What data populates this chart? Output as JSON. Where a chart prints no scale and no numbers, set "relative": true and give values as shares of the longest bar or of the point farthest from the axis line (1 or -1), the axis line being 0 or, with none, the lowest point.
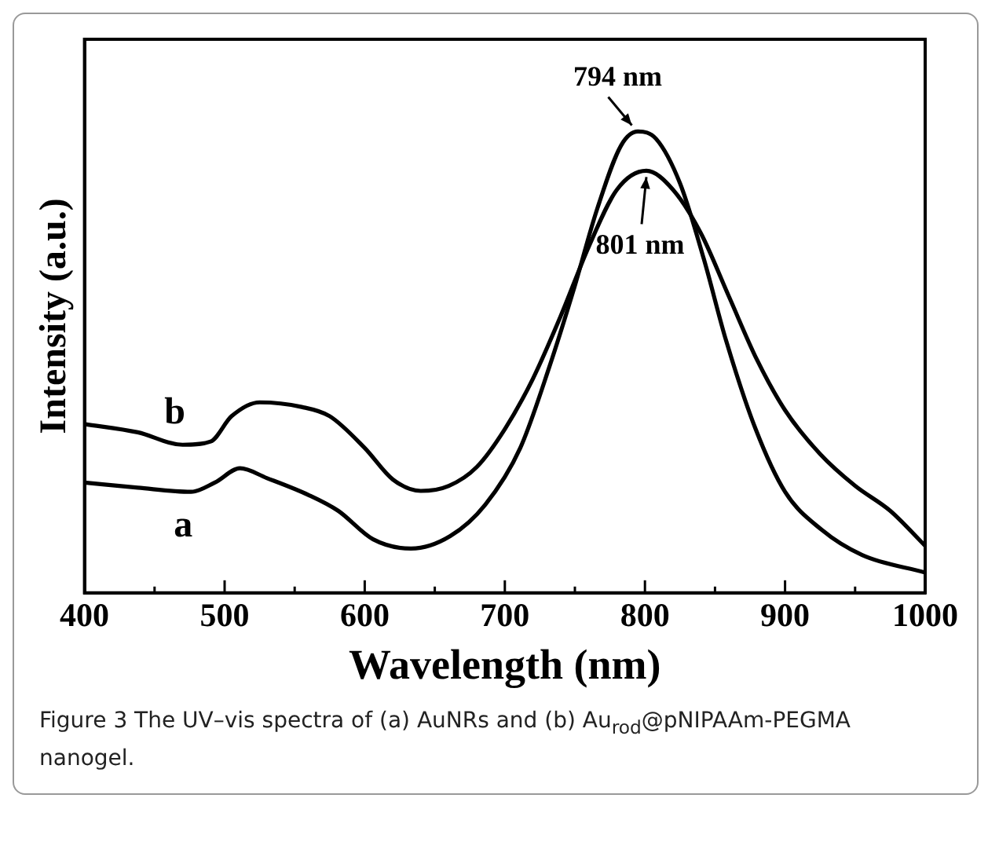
{
  "chart_data": {
    "type": "line",
    "relative": true,
    "xlabel": "Wavelength (nm)",
    "ylabel": "Intensity (a.u.)",
    "xlim": [
      400,
      1000
    ],
    "xticks": [
      400,
      {
        "value": 450,
        "label": null
      },
      500,
      {
        "value": 550,
        "label": null
      },
      600,
      {
        "value": 650,
        "label": null
      },
      700,
      {
        "value": 750,
        "label": null
      },
      800,
      {
        "value": 850,
        "label": null
      },
      900,
      {
        "value": 950,
        "label": null
      },
      1000
    ],
    "grid": false,
    "legend": false,
    "marker": "none",
    "line_style": "solid",
    "series": [
      {
        "name": "a",
        "color": "#000000",
        "x": [
          400,
          438,
          476,
          493,
          511,
          530,
          560,
          581,
          606,
          633,
          661,
          686,
          711,
          732,
          749,
          766,
          783,
          795,
          808,
          825,
          842,
          858,
          879,
          900,
          926,
          955,
          1000
        ],
        "values": [
          0.239,
          0.228,
          0.219,
          0.239,
          0.27,
          0.249,
          0.212,
          0.178,
          0.116,
          0.096,
          0.123,
          0.191,
          0.314,
          0.492,
          0.656,
          0.833,
          0.97,
          1.0,
          0.984,
          0.888,
          0.724,
          0.546,
          0.355,
          0.219,
          0.137,
          0.082,
          0.044
        ]
      },
      {
        "name": "b",
        "color": "#000000",
        "x": [
          400,
          438,
          470,
          490,
          505,
          525,
          555,
          575,
          600,
          620,
          640,
          660,
          680,
          700,
          720,
          740,
          760,
          780,
          801,
          820,
          840,
          860,
          880,
          900,
          925,
          950,
          975,
          1000
        ],
        "values": [
          0.366,
          0.348,
          0.321,
          0.328,
          0.383,
          0.413,
          0.403,
          0.383,
          0.314,
          0.246,
          0.221,
          0.232,
          0.273,
          0.355,
          0.464,
          0.601,
          0.751,
          0.874,
          0.915,
          0.874,
          0.779,
          0.642,
          0.505,
          0.396,
          0.301,
          0.232,
          0.178,
          0.102
        ]
      }
    ],
    "annotations": [
      {
        "text": "794 nm",
        "x": 794,
        "y": 1.0
      },
      {
        "text": "801 nm",
        "x": 801,
        "y": 0.915
      },
      "Figure 3 The UV–vis spectra of (a) AuNRs and (b) Au$_{rod}$@pNIPAAm-PEGMA nanogel."
    ]
  }
}
